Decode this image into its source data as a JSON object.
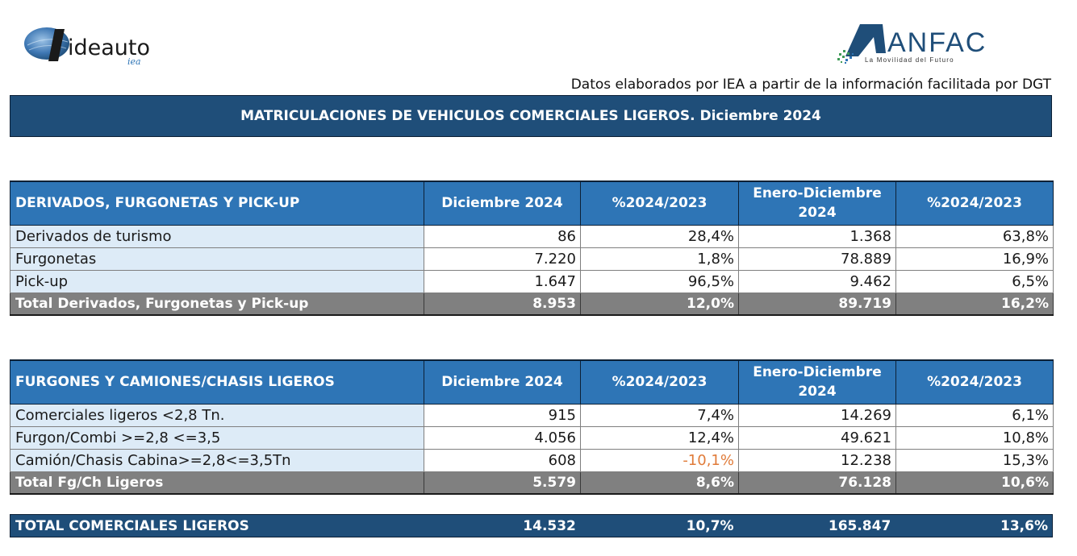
{
  "logos": {
    "left": {
      "name": "ideauto",
      "sub": "iea"
    },
    "right": {
      "name": "ANFAC",
      "tagline": "La Movilidad del Futuro",
      "accent": "#1f4e79"
    }
  },
  "source_note": "Datos elaborados por IEA a partir de la información facilitada por DGT",
  "title": "MATRICULACIONES DE VEHICULOS COMERCIALES LIGEROS. Diciembre 2024",
  "colors": {
    "header_dark": "#1f4e79",
    "header_blue": "#2e75b6",
    "label_bg": "#ddebf7",
    "total_bg": "#808080",
    "negative": "#e07b39"
  },
  "table1": {
    "headers": {
      "col1": "DERIVADOS, FURGONETAS Y PICK-UP",
      "col2": "Diciembre 2024",
      "col3": "%2024/2023",
      "col4_line1": "Enero-Diciembre",
      "col4_line2": "2024",
      "col5": "%2024/2023"
    },
    "rows": [
      {
        "label": "Derivados de turismo",
        "dic": "86",
        "pct": "28,4%",
        "ytd": "1.368",
        "pct_ytd": "63,8%"
      },
      {
        "label": "Furgonetas",
        "dic": "7.220",
        "pct": "1,8%",
        "ytd": "78.889",
        "pct_ytd": "16,9%"
      },
      {
        "label": "Pick-up",
        "dic": "1.647",
        "pct": "96,5%",
        "ytd": "9.462",
        "pct_ytd": "6,5%"
      }
    ],
    "total": {
      "label": "Total Derivados, Furgonetas y Pick-up",
      "dic": "8.953",
      "pct": "12,0%",
      "ytd": "89.719",
      "pct_ytd": "16,2%"
    }
  },
  "table2": {
    "headers": {
      "col1": "FURGONES Y CAMIONES/CHASIS LIGEROS",
      "col2": "Diciembre 2024",
      "col3": "%2024/2023",
      "col4_line1": "Enero-Diciembre",
      "col4_line2": "2024",
      "col5": "%2024/2023"
    },
    "rows": [
      {
        "label": "Comerciales ligeros <2,8 Tn.",
        "dic": "915",
        "pct": "7,4%",
        "ytd": "14.269",
        "pct_ytd": "6,1%"
      },
      {
        "label": "Furgon/Combi >=2,8 <=3,5",
        "dic": "4.056",
        "pct": "12,4%",
        "ytd": "49.621",
        "pct_ytd": "10,8%"
      },
      {
        "label": "Camión/Chasis Cabina>=2,8<=3,5Tn",
        "dic": "608",
        "pct": "-10,1%",
        "ytd": "12.238",
        "pct_ytd": "15,3%"
      }
    ],
    "total": {
      "label": "Total Fg/Ch Ligeros",
      "dic": "5.579",
      "pct": "8,6%",
      "ytd": "76.128",
      "pct_ytd": "10,6%"
    }
  },
  "grand_total": {
    "label": "TOTAL COMERCIALES LIGEROS",
    "dic": "14.532",
    "pct": "10,7%",
    "ytd": "165.847",
    "pct_ytd": "13,6%"
  }
}
